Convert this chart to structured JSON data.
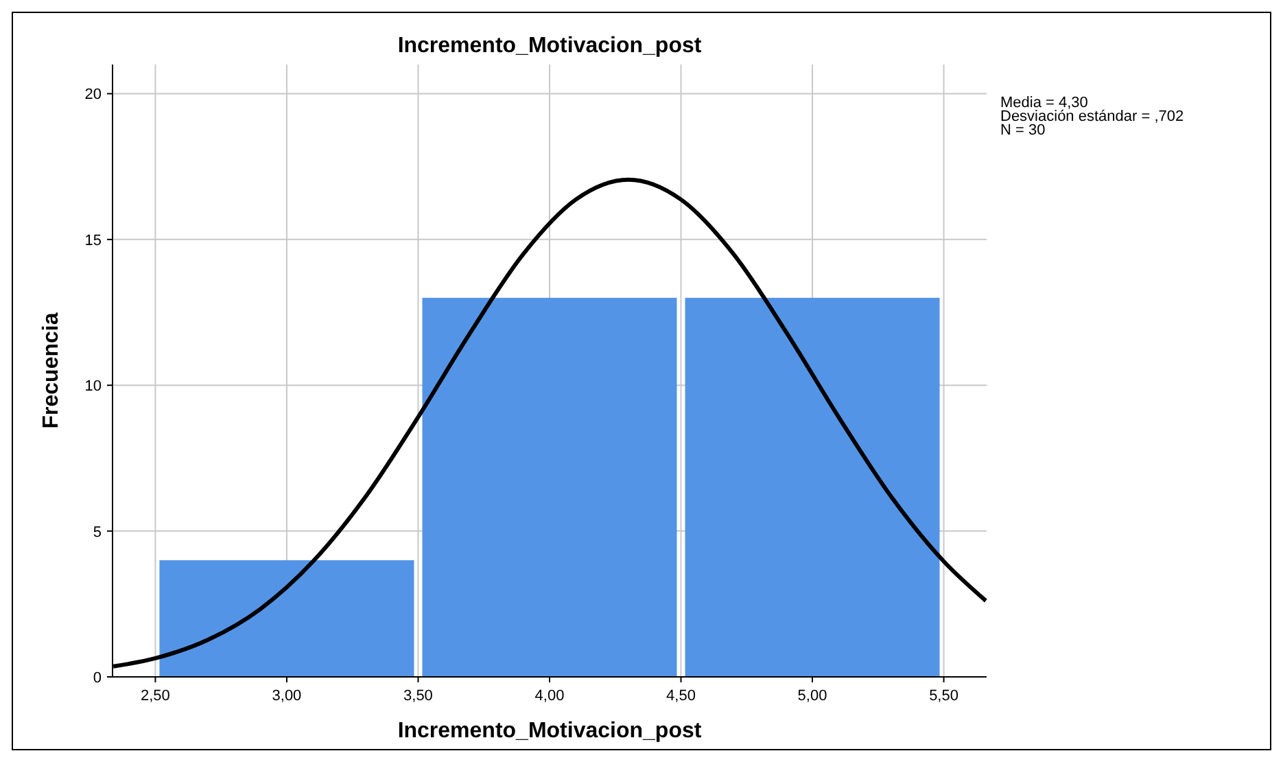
{
  "chart_data": {
    "type": "histogram",
    "title": "Incremento_Motivacion_post",
    "xlabel": "Incremento_Motivacion_post",
    "ylabel": "Frecuencia",
    "bins": [
      2.5,
      3.5,
      4.5,
      5.5
    ],
    "values": [
      4,
      13,
      13
    ],
    "color": "#5494e6",
    "series": [
      {
        "type": "line",
        "color": "#000000",
        "x": [
          2.34,
          2.5,
          2.7,
          2.9,
          3.1,
          3.3,
          3.5,
          3.7,
          3.9,
          4.1,
          4.3,
          4.5,
          4.7,
          4.9,
          5.1,
          5.3,
          5.5,
          5.66
        ],
        "values": [
          0.36,
          0.64,
          1.27,
          2.33,
          3.96,
          6.18,
          8.91,
          11.83,
          14.5,
          16.37,
          17.05,
          16.37,
          14.5,
          11.83,
          8.91,
          6.18,
          3.96,
          2.61
        ]
      }
    ],
    "xlim": [
      2.337,
      5.663
    ],
    "ylim": [
      0,
      21
    ],
    "xticks": [
      {
        "value": 2.5,
        "label": "2,50"
      },
      {
        "value": 3,
        "label": "3,00"
      },
      {
        "value": 3.5,
        "label": "3,50"
      },
      {
        "value": 4,
        "label": "4,00"
      },
      {
        "value": 4.5,
        "label": "4,50"
      },
      {
        "value": 5,
        "label": "5,00"
      },
      {
        "value": 5.5,
        "label": "5,50"
      }
    ],
    "yticks": [
      0,
      5,
      10,
      15,
      20
    ],
    "grid": true,
    "annotations": [
      "Media = 4,30",
      "Desviación estándar = ,702",
      "N = 30"
    ]
  }
}
